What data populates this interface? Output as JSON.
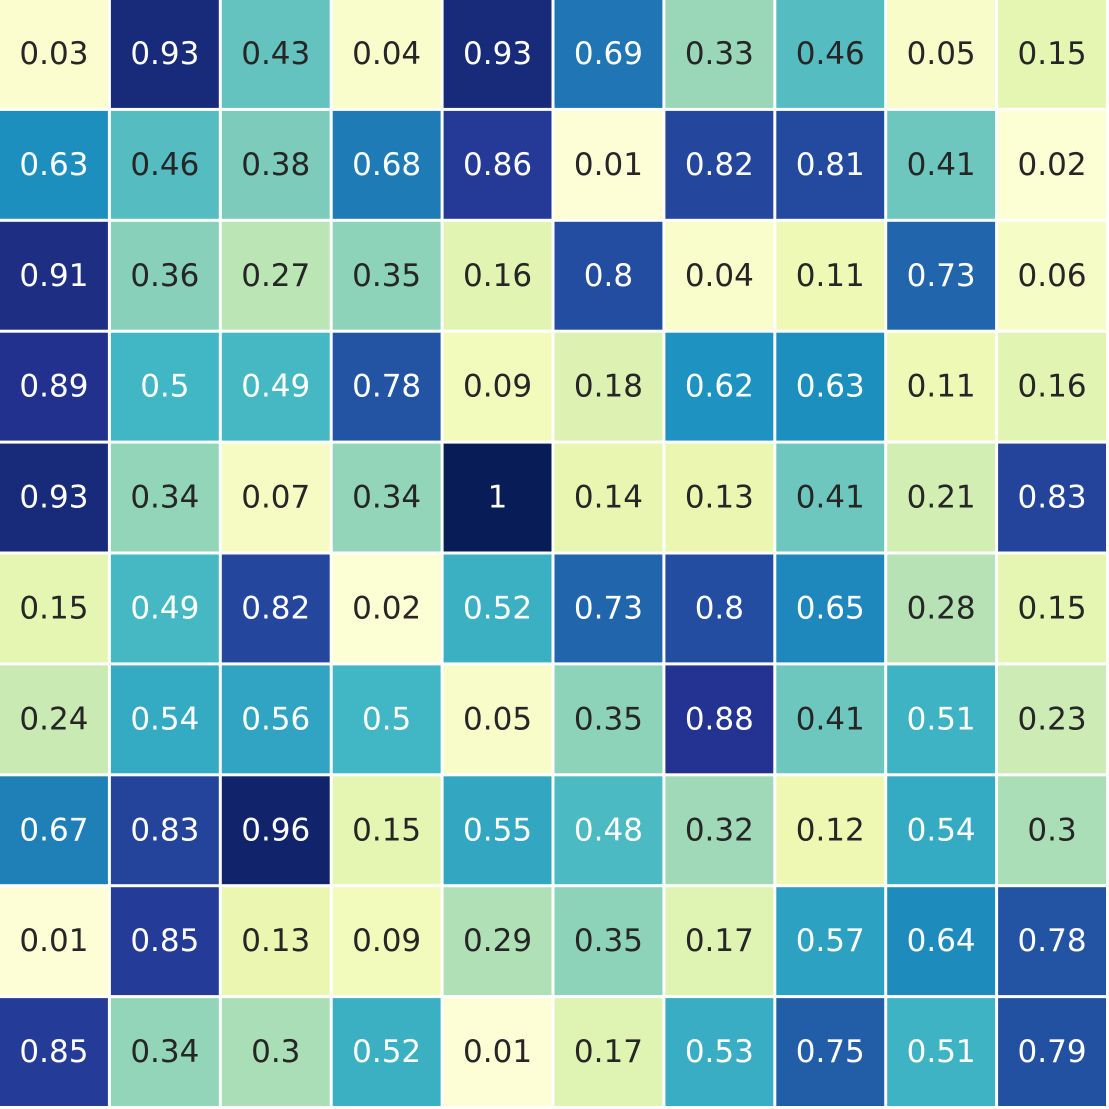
{
  "chart_data": {
    "type": "heatmap",
    "title": "",
    "xlabel": "",
    "ylabel": "",
    "colormap": "YlGnBu",
    "value_range": [
      0,
      1
    ],
    "grid_line_color": "#ffffff",
    "dark_text_color": "#262626",
    "light_text_color": "#ffffff",
    "rows": [
      [
        0.03,
        0.93,
        0.43,
        0.04,
        0.93,
        0.69,
        0.33,
        0.46,
        0.05,
        0.15
      ],
      [
        0.63,
        0.46,
        0.38,
        0.68,
        0.86,
        0.01,
        0.82,
        0.81,
        0.41,
        0.02
      ],
      [
        0.91,
        0.36,
        0.27,
        0.35,
        0.16,
        0.8,
        0.04,
        0.11,
        0.73,
        0.06
      ],
      [
        0.89,
        0.5,
        0.49,
        0.78,
        0.09,
        0.18,
        0.62,
        0.63,
        0.11,
        0.16
      ],
      [
        0.93,
        0.34,
        0.07,
        0.34,
        1,
        0.14,
        0.13,
        0.41,
        0.21,
        0.83
      ],
      [
        0.15,
        0.49,
        0.82,
        0.02,
        0.52,
        0.73,
        0.8,
        0.65,
        0.28,
        0.15
      ],
      [
        0.24,
        0.54,
        0.56,
        0.5,
        0.05,
        0.35,
        0.88,
        0.41,
        0.51,
        0.23
      ],
      [
        0.67,
        0.83,
        0.96,
        0.15,
        0.55,
        0.48,
        0.32,
        0.12,
        0.54,
        0.3
      ],
      [
        0.01,
        0.85,
        0.13,
        0.09,
        0.29,
        0.35,
        0.17,
        0.57,
        0.64,
        0.78
      ],
      [
        0.85,
        0.34,
        0.3,
        0.52,
        0.01,
        0.17,
        0.53,
        0.75,
        0.51,
        0.79
      ]
    ]
  }
}
